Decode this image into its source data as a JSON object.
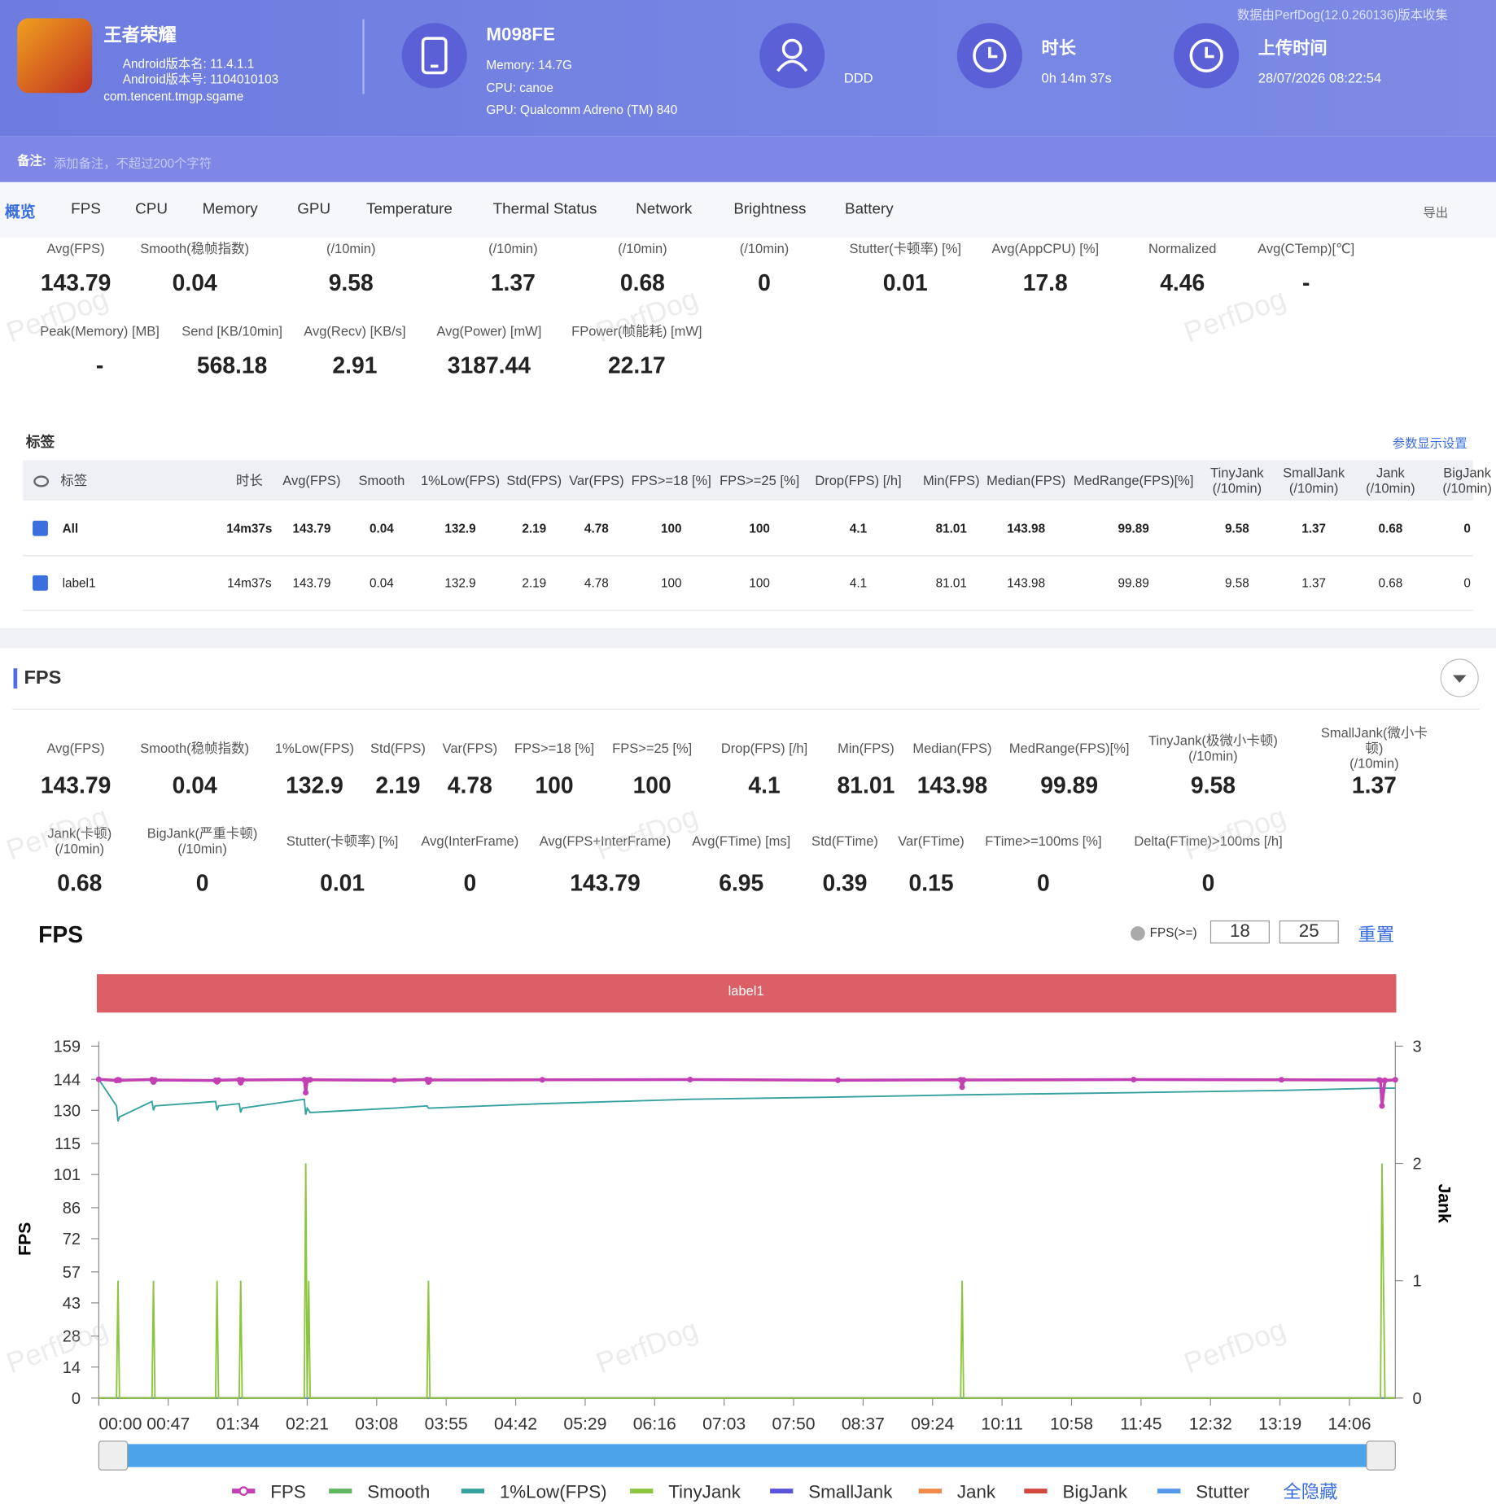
{
  "header": {
    "app_name": "王者荣耀",
    "android_version": "Android版本名: 11.4.1.1",
    "android_code": "Android版本号: 1104010103",
    "package": "com.tencent.tmgp.sgame",
    "device": "M098FE",
    "memory": "Memory: 14.7G",
    "cpu": "CPU: canoe",
    "gpu": "GPU: Qualcomm Adreno (TM) 840",
    "user": "DDD",
    "duration_label": "时长",
    "duration": "0h 14m 37s",
    "upload_label": "上传时间",
    "upload_time": "28/07/2026 08:22:54",
    "source_note": "数据由PerfDog(12.0.260136)版本收集"
  },
  "note": {
    "label": "备注:",
    "placeholder": "添加备注，不超过200个字符"
  },
  "tabs": [
    "概览",
    "FPS",
    "CPU",
    "Memory",
    "GPU",
    "Temperature",
    "Thermal Status",
    "Network",
    "Brightness",
    "Battery"
  ],
  "export": "导出",
  "watermark": "PerfDog",
  "summary": [
    [
      {
        "label": "Avg(FPS)",
        "value": "143.79"
      },
      {
        "label": "Smooth(稳帧指数)",
        "value": "0.04"
      },
      {
        "label": "(/10min)",
        "value": "9.58"
      },
      {
        "label": "(/10min)",
        "value": "1.37"
      },
      {
        "label": "(/10min)",
        "value": "0.68"
      },
      {
        "label": "(/10min)",
        "value": "0"
      },
      {
        "label": "Stutter(卡顿率) [%]",
        "value": "0.01"
      },
      {
        "label": "Avg(AppCPU) [%]",
        "value": "17.8"
      },
      {
        "label": "Normalized",
        "value": "4.46"
      },
      {
        "label": "Avg(CTemp)[℃]",
        "value": "-"
      }
    ],
    [
      {
        "label": "Peak(Memory) [MB]",
        "value": "-"
      },
      {
        "label": "Send [KB/10min]",
        "value": "568.18"
      },
      {
        "label": "Avg(Recv) [KB/s]",
        "value": "2.91"
      },
      {
        "label": "Avg(Power) [mW]",
        "value": "3187.44"
      },
      {
        "label": "FPower(帧能耗) [mW]",
        "value": "22.17"
      }
    ]
  ],
  "tags": {
    "title": "标签",
    "settings": "参数显示设置",
    "columns": [
      "标签",
      "时长",
      "Avg(FPS)",
      "Smooth",
      "1%Low(FPS)",
      "Std(FPS)",
      "Var(FPS)",
      "FPS>=18 [%]",
      "FPS>=25 [%]",
      "Drop(FPS) [/h]",
      "Min(FPS)",
      "Median(FPS)",
      "MedRange(FPS)[%]",
      "TinyJank\n(/10min)",
      "SmallJank\n(/10min)",
      "Jank\n(/10min)",
      "BigJank\n(/10min)"
    ],
    "rows": [
      [
        "All",
        "14m37s",
        "143.79",
        "0.04",
        "132.9",
        "2.19",
        "4.78",
        "100",
        "100",
        "4.1",
        "81.01",
        "143.98",
        "99.89",
        "9.58",
        "1.37",
        "0.68",
        "0"
      ],
      [
        "label1",
        "14m37s",
        "143.79",
        "0.04",
        "132.9",
        "2.19",
        "4.78",
        "100",
        "100",
        "4.1",
        "81.01",
        "143.98",
        "99.89",
        "9.58",
        "1.37",
        "0.68",
        "0"
      ]
    ]
  },
  "fps_section": {
    "title": "FPS",
    "stats": [
      [
        {
          "label": "Avg(FPS)",
          "value": "143.79"
        },
        {
          "label": "Smooth(稳帧指数)",
          "value": "0.04"
        },
        {
          "label": "1%Low(FPS)",
          "value": "132.9"
        },
        {
          "label": "Std(FPS)",
          "value": "2.19"
        },
        {
          "label": "Var(FPS)",
          "value": "4.78"
        },
        {
          "label": "FPS>=18 [%]",
          "value": "100"
        },
        {
          "label": "FPS>=25 [%]",
          "value": "100"
        },
        {
          "label": "Drop(FPS) [/h]",
          "value": "4.1"
        },
        {
          "label": "Min(FPS)",
          "value": "81.01"
        },
        {
          "label": "Median(FPS)",
          "value": "143.98"
        },
        {
          "label": "MedRange(FPS)[%]",
          "value": "99.89"
        },
        {
          "label": "TinyJank(极微小卡顿)\n(/10min)",
          "value": "9.58"
        },
        {
          "label": "SmallJank(微小卡顿)\n(/10min)",
          "value": "1.37"
        }
      ],
      [
        {
          "label": "Jank(卡顿)\n(/10min)",
          "value": "0.68"
        },
        {
          "label": "BigJank(严重卡顿)\n(/10min)",
          "value": "0"
        },
        {
          "label": "Stutter(卡顿率) [%]",
          "value": "0.01"
        },
        {
          "label": "Avg(InterFrame)",
          "value": "0"
        },
        {
          "label": "Avg(FPS+InterFrame)",
          "value": "143.79"
        },
        {
          "label": "Avg(FTime) [ms]",
          "value": "6.95"
        },
        {
          "label": "Std(FTime)",
          "value": "0.39"
        },
        {
          "label": "Var(FTime)",
          "value": "0.15"
        },
        {
          "label": "FTime>=100ms [%]",
          "value": "0"
        },
        {
          "label": "Delta(FTime)>100ms [/h]",
          "value": "0"
        }
      ]
    ]
  },
  "chart_data": {
    "type": "line",
    "title": "FPS",
    "threshold_label": "FPS(>=)",
    "thresholds": [
      "18",
      "25"
    ],
    "reset": "重置",
    "band_label": "label1",
    "ylabel": "FPS",
    "y2label": "Jank",
    "hide_all": "全隐藏",
    "x": [
      0,
      12,
      13,
      14,
      36,
      37,
      38,
      79,
      80,
      81,
      95,
      96,
      97,
      139,
      140,
      141,
      142,
      143,
      200,
      222,
      223,
      224,
      300,
      400,
      500,
      583,
      584,
      585,
      700,
      800,
      866,
      867,
      868,
      870,
      877
    ],
    "xlim": [
      0,
      877
    ],
    "xticks": [
      {
        "value": 0,
        "label": "00:00"
      },
      {
        "value": 47,
        "label": "00:47"
      },
      {
        "value": 94,
        "label": "01:34"
      },
      {
        "value": 141,
        "label": "02:21"
      },
      {
        "value": 188,
        "label": "03:08"
      },
      {
        "value": 235,
        "label": "03:55"
      },
      {
        "value": 282,
        "label": "04:42"
      },
      {
        "value": 329,
        "label": "05:29"
      },
      {
        "value": 376,
        "label": "06:16"
      },
      {
        "value": 423,
        "label": "07:03"
      },
      {
        "value": 470,
        "label": "07:50"
      },
      {
        "value": 517,
        "label": "08:37"
      },
      {
        "value": 564,
        "label": "09:24"
      },
      {
        "value": 611,
        "label": "10:11"
      },
      {
        "value": 658,
        "label": "10:58"
      },
      {
        "value": 705,
        "label": "11:45"
      },
      {
        "value": 752,
        "label": "12:32"
      },
      {
        "value": 799,
        "label": "13:19"
      },
      {
        "value": 846,
        "label": "14:06"
      }
    ],
    "ylim": [
      0,
      159
    ],
    "yticks": [
      0,
      14,
      28,
      43,
      57,
      72,
      86,
      101,
      115,
      130,
      144,
      159
    ],
    "y2lim": [
      0,
      3
    ],
    "y2ticks": [
      0,
      1,
      2,
      3
    ],
    "series": [
      {
        "name": "FPS",
        "color": "#c23fb4",
        "markers": true,
        "values": [
          144,
          143.5,
          143.8,
          143.6,
          143.9,
          142.8,
          143.7,
          143.5,
          142.9,
          143.6,
          143.8,
          142.5,
          143.7,
          143.9,
          138,
          143.5,
          143.7,
          143.8,
          143.6,
          143.9,
          142.8,
          143.7,
          143.8,
          143.9,
          143.6,
          143.8,
          140.5,
          143.7,
          143.9,
          143.8,
          143.7,
          143.5,
          132,
          143.5,
          143.8
        ]
      },
      {
        "name": "Smooth",
        "color": "#5fb760",
        "axis": "y2",
        "values": [
          0,
          0,
          0,
          0,
          0,
          0,
          0,
          0,
          0,
          0,
          0,
          0,
          0,
          0,
          0,
          0,
          0,
          0,
          0,
          0,
          0,
          0,
          0,
          0,
          0,
          0,
          0,
          0,
          0,
          0,
          0,
          0,
          0,
          0,
          0
        ]
      },
      {
        "name": "1%Low(FPS)",
        "color": "#35a2a0",
        "values": [
          144,
          132,
          125,
          127,
          134,
          130,
          132,
          134,
          130,
          132,
          133,
          129,
          131,
          135,
          128,
          131,
          130,
          129,
          131,
          132,
          131,
          131,
          133,
          135,
          136,
          137,
          137,
          137,
          138,
          139,
          140,
          140,
          140,
          140,
          140
        ]
      },
      {
        "name": "TinyJank",
        "color": "#8cc63e",
        "axis": "y2",
        "values": [
          0,
          0,
          1,
          0,
          0,
          1,
          0,
          0,
          1,
          0,
          0,
          1,
          0,
          0,
          2,
          0,
          1,
          0,
          0,
          0,
          1,
          0,
          0,
          0,
          0,
          0,
          1,
          0,
          0,
          0,
          0,
          0,
          2,
          0,
          0
        ]
      },
      {
        "name": "SmallJank",
        "color": "#5a55d8",
        "axis": "y2",
        "values": [
          0,
          0,
          0,
          0,
          0,
          0,
          0,
          0,
          0,
          0,
          0,
          0,
          0,
          0,
          0,
          0,
          0,
          0,
          0,
          0,
          0,
          0,
          0,
          0,
          0,
          0,
          0,
          0,
          0,
          0,
          0,
          0,
          0,
          0,
          0
        ]
      },
      {
        "name": "Jank",
        "color": "#ef8a4a",
        "axis": "y2",
        "values": [
          0,
          0,
          0,
          0,
          0,
          0,
          0,
          0,
          0,
          0,
          0,
          0,
          0,
          0,
          0,
          0,
          0,
          0,
          0,
          0,
          0,
          0,
          0,
          0,
          0,
          0,
          0,
          0,
          0,
          0,
          0,
          0,
          0,
          0,
          0
        ]
      },
      {
        "name": "BigJank",
        "color": "#d2473f",
        "axis": "y2",
        "values": [
          0,
          0,
          0,
          0,
          0,
          0,
          0,
          0,
          0,
          0,
          0,
          0,
          0,
          0,
          0,
          0,
          0,
          0,
          0,
          0,
          0,
          0,
          0,
          0,
          0,
          0,
          0,
          0,
          0,
          0,
          0,
          0,
          0,
          0,
          0
        ]
      },
      {
        "name": "Stutter",
        "color": "#5597e8",
        "axis": "y2",
        "values": [
          0,
          0,
          0,
          0,
          0,
          0,
          0,
          0,
          0,
          0,
          0,
          0,
          0,
          0,
          0,
          0,
          0,
          0,
          0,
          0,
          0,
          0,
          0,
          0,
          0,
          0,
          0,
          0,
          0,
          0,
          0,
          0,
          0,
          0,
          0
        ]
      }
    ]
  }
}
